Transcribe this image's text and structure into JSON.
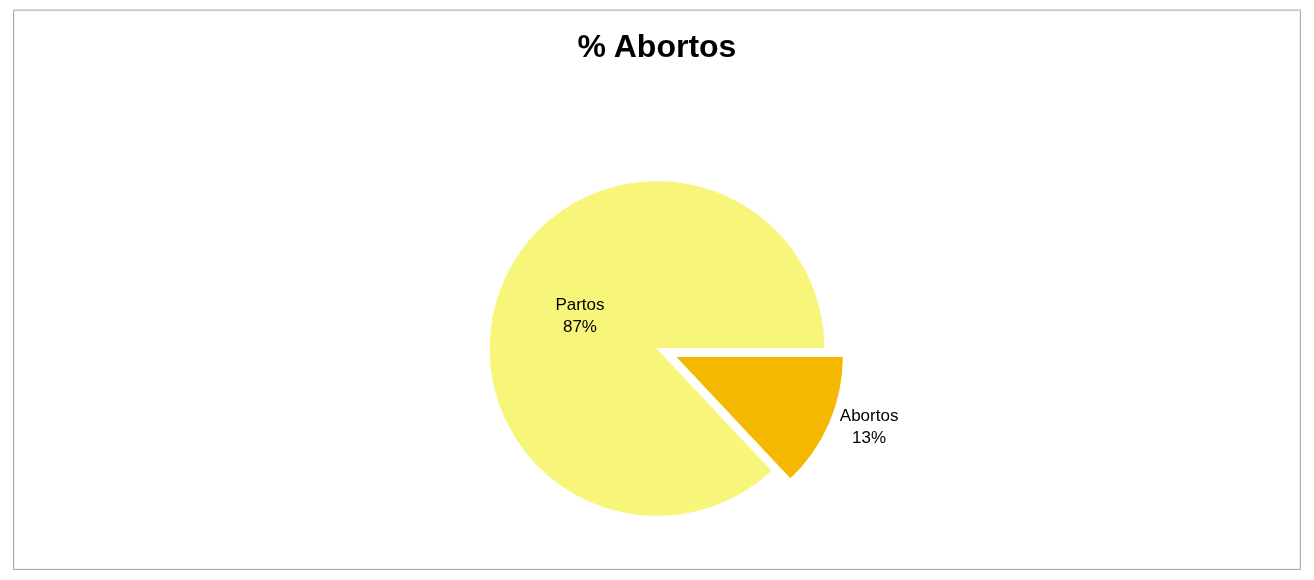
{
  "chart_data": {
    "type": "pie",
    "title": "% Abortos",
    "categories": [
      "Abortos",
      "Partos"
    ],
    "values": [
      13,
      87
    ],
    "value_labels": [
      "13%",
      "87%"
    ],
    "colors": [
      "#f5b800",
      "#f8f67a"
    ],
    "legend": false
  }
}
